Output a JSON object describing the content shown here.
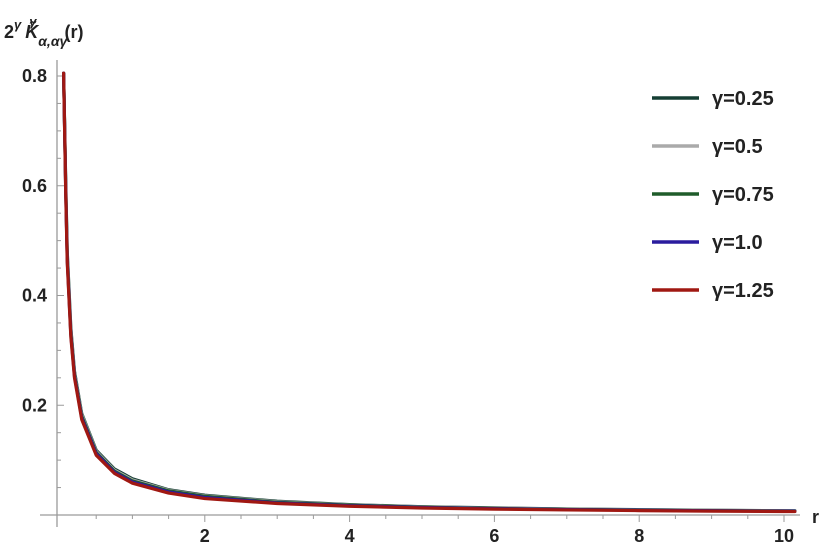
{
  "chart_data": {
    "type": "line",
    "ylabel": {
      "base": "2",
      "base_sup": "γ",
      "symbol": "K̃",
      "symbol_sup": "γ",
      "symbol_sub": "α,αγ",
      "arg": "(r)"
    },
    "xlabel": "r",
    "xlim": [
      0,
      10.2
    ],
    "ylim": [
      0,
      0.82
    ],
    "x_ticks": [
      2,
      4,
      6,
      8,
      10
    ],
    "x_tick_labels": [
      "2",
      "4",
      "6",
      "8",
      "10"
    ],
    "y_ticks": [
      0.2,
      0.4,
      0.6,
      0.8
    ],
    "y_tick_labels": [
      "0.2",
      "0.4",
      "0.6",
      "0.8"
    ],
    "grid": false,
    "legend_position": "top-right",
    "series": [
      {
        "name": "γ=0.25",
        "color": "#153e33",
        "x": [
          0.05,
          0.08,
          0.1,
          0.15,
          0.2,
          0.3,
          0.5,
          0.75,
          1.0,
          1.5,
          2.0,
          3.0,
          4.0,
          5.0,
          6.0,
          7.0,
          8.0,
          9.0,
          10.0,
          10.15
        ],
        "y": [
          0.805,
          0.6,
          0.48,
          0.34,
          0.262,
          0.185,
          0.118,
          0.084,
          0.066,
          0.046,
          0.036,
          0.025,
          0.019,
          0.015,
          0.013,
          0.011,
          0.0097,
          0.0087,
          0.0078,
          0.0077
        ]
      },
      {
        "name": "γ=0.5",
        "color": "#aaaaaa",
        "x": [
          0.05,
          0.08,
          0.1,
          0.15,
          0.2,
          0.3,
          0.5,
          0.75,
          1.0,
          1.5,
          2.0,
          3.0,
          4.0,
          5.0,
          6.0,
          7.0,
          8.0,
          9.0,
          10.0,
          10.15
        ],
        "y": [
          0.805,
          0.595,
          0.475,
          0.336,
          0.259,
          0.183,
          0.116,
          0.082,
          0.064,
          0.045,
          0.035,
          0.024,
          0.0185,
          0.0148,
          0.0124,
          0.0107,
          0.0094,
          0.0084,
          0.0076,
          0.0075
        ]
      },
      {
        "name": "γ=0.75",
        "color": "#1f5c2a",
        "x": [
          0.05,
          0.08,
          0.1,
          0.15,
          0.2,
          0.3,
          0.5,
          0.75,
          1.0,
          1.5,
          2.0,
          3.0,
          4.0,
          5.0,
          6.0,
          7.0,
          8.0,
          9.0,
          10.0,
          10.15
        ],
        "y": [
          0.805,
          0.59,
          0.47,
          0.332,
          0.256,
          0.18,
          0.114,
          0.08,
          0.062,
          0.044,
          0.034,
          0.023,
          0.018,
          0.0144,
          0.012,
          0.0104,
          0.0091,
          0.0081,
          0.0073,
          0.0072
        ]
      },
      {
        "name": "γ=1.0",
        "color": "#2a1c9e",
        "x": [
          0.05,
          0.08,
          0.1,
          0.15,
          0.2,
          0.3,
          0.5,
          0.75,
          1.0,
          1.5,
          2.0,
          3.0,
          4.0,
          5.0,
          6.0,
          7.0,
          8.0,
          9.0,
          10.0,
          10.15
        ],
        "y": [
          0.805,
          0.585,
          0.465,
          0.328,
          0.253,
          0.177,
          0.112,
          0.078,
          0.06,
          0.042,
          0.032,
          0.022,
          0.017,
          0.0138,
          0.0115,
          0.0099,
          0.0087,
          0.0077,
          0.007,
          0.0069
        ]
      },
      {
        "name": "γ=1.25",
        "color": "#a01812",
        "x": [
          0.05,
          0.08,
          0.1,
          0.15,
          0.2,
          0.3,
          0.5,
          0.75,
          1.0,
          1.5,
          2.0,
          3.0,
          4.0,
          5.0,
          6.0,
          7.0,
          8.0,
          9.0,
          10.0,
          10.15
        ],
        "y": [
          0.805,
          0.58,
          0.46,
          0.324,
          0.25,
          0.174,
          0.109,
          0.076,
          0.058,
          0.04,
          0.03,
          0.021,
          0.016,
          0.0128,
          0.0107,
          0.0092,
          0.008,
          0.0071,
          0.0064,
          0.0063
        ]
      }
    ]
  }
}
